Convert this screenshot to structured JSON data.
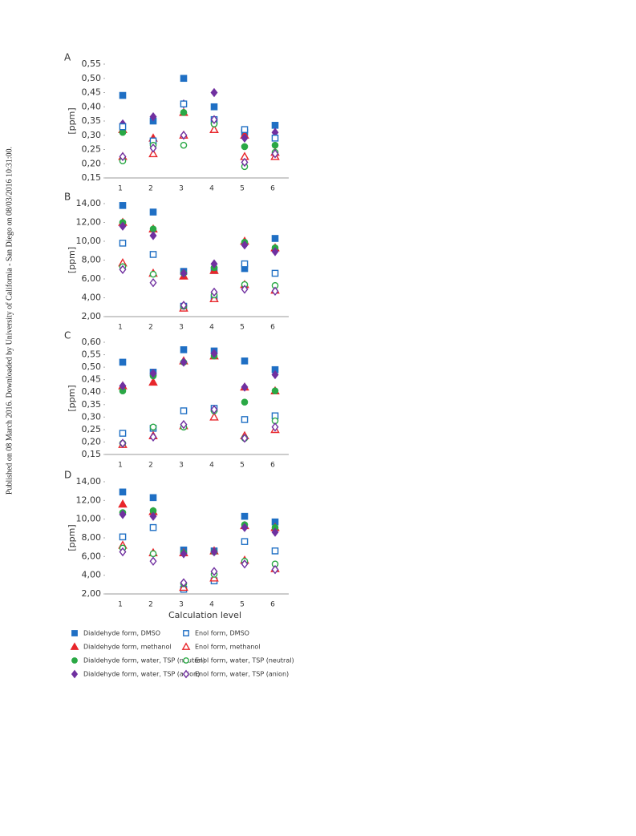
{
  "side_note": "Published on 08 March 2016. Downloaded by University of California - San Diego on 08/03/2016 10:31:00.",
  "legend": [
    {
      "name": "Dialdehyde form, DMSO",
      "color": "#1f6fc4",
      "marker": "square",
      "filled": true
    },
    {
      "name": "Dialdehyde form, methanol",
      "color": "#e8262b",
      "marker": "triangle",
      "filled": true
    },
    {
      "name": "Dialdehyde form, water, TSP (neutral)",
      "color": "#2aa845",
      "marker": "circle",
      "filled": true
    },
    {
      "name": "Dialdehyde form, water, TSP (anion)",
      "color": "#7030a0",
      "marker": "diamond",
      "filled": true
    },
    {
      "name": "Enol form, DMSO",
      "color": "#1f6fc4",
      "marker": "square",
      "filled": false
    },
    {
      "name": "Enol form, methanol",
      "color": "#e8262b",
      "marker": "triangle",
      "filled": false
    },
    {
      "name": "Enol form, water, TSP (neutral)",
      "color": "#2aa845",
      "marker": "circle",
      "filled": false
    },
    {
      "name": "Enol form, water, TSP (anion)",
      "color": "#7030a0",
      "marker": "diamond",
      "filled": false
    }
  ],
  "chart_data": [
    {
      "type": "scatter",
      "label": "A",
      "ylabel": "[ppm]",
      "categories": [
        "1",
        "2",
        "3",
        "4",
        "5",
        "6"
      ],
      "ylim": [
        0.15,
        0.55
      ],
      "yticks": [
        {
          "value": 0.15,
          "label": "0,15"
        },
        {
          "value": 0.2,
          "label": "0,20"
        },
        {
          "value": 0.25,
          "label": "0,25"
        },
        {
          "value": 0.3,
          "label": "0,30"
        },
        {
          "value": 0.35,
          "label": "0,35"
        },
        {
          "value": 0.4,
          "label": "0,40"
        },
        {
          "value": 0.45,
          "label": "0,45"
        },
        {
          "value": 0.5,
          "label": "0,50"
        },
        {
          "value": 0.55,
          "label": "0,55"
        }
      ],
      "series": [
        {
          "values": [
            0.44,
            0.35,
            0.5,
            0.4,
            0.31,
            0.335
          ]
        },
        {
          "values": [
            0.32,
            0.29,
            0.38,
            0.32,
            0.3,
            0.24
          ]
        },
        {
          "values": [
            0.31,
            0.27,
            0.38,
            0.34,
            0.26,
            0.265
          ]
        },
        {
          "values": [
            0.34,
            0.365,
            0.41,
            0.45,
            0.29,
            0.31
          ]
        },
        {
          "values": [
            0.33,
            0.28,
            0.41,
            0.355,
            0.32,
            0.29
          ]
        },
        {
          "values": [
            0.225,
            0.235,
            0.3,
            0.32,
            0.225,
            0.225
          ]
        },
        {
          "values": [
            0.21,
            0.265,
            0.265,
            0.34,
            0.19,
            0.24
          ]
        },
        {
          "values": [
            0.225,
            0.255,
            0.3,
            0.355,
            0.205,
            0.235
          ]
        }
      ]
    },
    {
      "type": "scatter",
      "label": "B",
      "ylabel": "[ppm]",
      "categories": [
        "1",
        "2",
        "3",
        "4",
        "5",
        "6"
      ],
      "ylim": [
        2,
        14
      ],
      "yticks": [
        {
          "value": 2,
          "label": "2,00"
        },
        {
          "value": 4,
          "label": "4,00"
        },
        {
          "value": 6,
          "label": "6,00"
        },
        {
          "value": 8,
          "label": "8,00"
        },
        {
          "value": 10,
          "label": "10,00"
        },
        {
          "value": 12,
          "label": "12,00"
        },
        {
          "value": 14,
          "label": "14,00"
        }
      ],
      "series": [
        {
          "values": [
            13.8,
            13.1,
            6.8,
            6.9,
            7.1,
            10.3
          ]
        },
        {
          "values": [
            12.0,
            11.3,
            6.3,
            6.9,
            10.0,
            9.3
          ]
        },
        {
          "values": [
            12.0,
            11.3,
            6.6,
            7.2,
            9.9,
            9.3
          ]
        },
        {
          "values": [
            11.6,
            10.6,
            6.6,
            7.6,
            9.6,
            8.9
          ]
        },
        {
          "values": [
            9.8,
            8.6,
            3.1,
            3.9,
            7.6,
            6.6
          ]
        },
        {
          "values": [
            7.7,
            6.6,
            2.9,
            3.9,
            5.4,
            4.8
          ]
        },
        {
          "values": [
            7.3,
            6.5,
            3.1,
            4.3,
            5.4,
            5.3
          ]
        },
        {
          "values": [
            7.0,
            5.6,
            3.2,
            4.6,
            4.9,
            4.7
          ]
        }
      ]
    },
    {
      "type": "scatter",
      "label": "C",
      "ylabel": "[ppm]",
      "categories": [
        "1",
        "2",
        "3",
        "4",
        "5",
        "6"
      ],
      "ylim": [
        0.15,
        0.6
      ],
      "yticks": [
        {
          "value": 0.15,
          "label": "0,15"
        },
        {
          "value": 0.2,
          "label": "0,20"
        },
        {
          "value": 0.25,
          "label": "0,25"
        },
        {
          "value": 0.3,
          "label": "0,30"
        },
        {
          "value": 0.35,
          "label": "0,35"
        },
        {
          "value": 0.4,
          "label": "0,40"
        },
        {
          "value": 0.45,
          "label": "0,45"
        },
        {
          "value": 0.5,
          "label": "0,50"
        },
        {
          "value": 0.55,
          "label": "0,55"
        },
        {
          "value": 0.6,
          "label": "0,60"
        }
      ],
      "series": [
        {
          "values": [
            0.52,
            0.48,
            0.57,
            0.565,
            0.525,
            0.49
          ]
        },
        {
          "values": [
            0.425,
            0.44,
            0.525,
            0.545,
            0.42,
            0.405
          ]
        },
        {
          "values": [
            0.405,
            0.465,
            0.52,
            0.545,
            0.36,
            0.405
          ]
        },
        {
          "values": [
            0.425,
            0.475,
            0.52,
            0.555,
            0.42,
            0.47
          ]
        },
        {
          "values": [
            0.235,
            0.255,
            0.325,
            0.335,
            0.29,
            0.305
          ]
        },
        {
          "values": [
            0.19,
            0.225,
            0.265,
            0.3,
            0.225,
            0.25
          ]
        },
        {
          "values": [
            0.195,
            0.26,
            0.26,
            0.325,
            0.215,
            0.285
          ]
        },
        {
          "values": [
            0.195,
            0.22,
            0.27,
            0.33,
            0.215,
            0.26
          ]
        }
      ]
    },
    {
      "type": "scatter",
      "label": "D",
      "ylabel": "[ppm]",
      "xlabel": "Calculation level",
      "categories": [
        "1",
        "2",
        "3",
        "4",
        "5",
        "6"
      ],
      "ylim": [
        2,
        14
      ],
      "yticks": [
        {
          "value": 2,
          "label": "2,00"
        },
        {
          "value": 4,
          "label": "4,00"
        },
        {
          "value": 6,
          "label": "6,00"
        },
        {
          "value": 8,
          "label": "8,00"
        },
        {
          "value": 10,
          "label": "10,00"
        },
        {
          "value": 12,
          "label": "12,00"
        },
        {
          "value": 14,
          "label": "14,00"
        }
      ],
      "series": [
        {
          "values": [
            12.9,
            12.3,
            6.7,
            6.6,
            10.3,
            9.7
          ]
        },
        {
          "values": [
            11.6,
            10.8,
            6.4,
            6.6,
            9.3,
            9.1
          ]
        },
        {
          "values": [
            10.7,
            10.9,
            6.4,
            6.5,
            9.4,
            9.1
          ]
        },
        {
          "values": [
            10.5,
            10.3,
            6.3,
            6.5,
            9.1,
            8.6
          ]
        },
        {
          "values": [
            8.1,
            9.1,
            2.5,
            3.4,
            7.6,
            6.6
          ]
        },
        {
          "values": [
            7.2,
            6.4,
            2.7,
            3.7,
            5.6,
            4.7
          ]
        },
        {
          "values": [
            6.9,
            6.3,
            3.1,
            4.1,
            5.5,
            5.2
          ]
        },
        {
          "values": [
            6.5,
            5.5,
            3.2,
            4.4,
            5.2,
            4.6
          ]
        }
      ]
    }
  ]
}
